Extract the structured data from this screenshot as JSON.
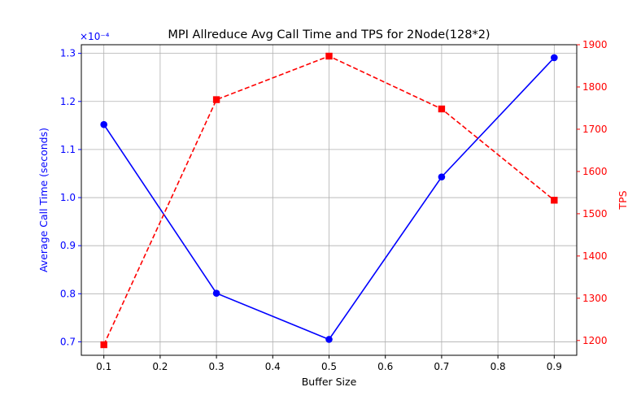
{
  "chart_data": {
    "type": "line",
    "title": "MPI Allreduce Avg Call Time and TPS for 2Node(128*2)",
    "xlabel": "Buffer Size",
    "x": [
      0.1,
      0.3,
      0.5,
      0.7,
      0.9
    ],
    "x_ticks": [
      "0.1",
      "0.2",
      "0.3",
      "0.4",
      "0.5",
      "0.6",
      "0.7",
      "0.8",
      "0.9"
    ],
    "xlim": [
      0.06,
      0.94
    ],
    "grid": true,
    "left_axis": {
      "label": "Average Call Time (seconds)",
      "offset_text": "×10⁻⁴",
      "color": "#0000ff",
      "ylim": [
        0.672,
        1.318
      ],
      "ticks": [
        "0.7",
        "0.8",
        "0.9",
        "1.0",
        "1.1",
        "1.2",
        "1.3"
      ]
    },
    "right_axis": {
      "label": "TPS",
      "color": "#ff0000",
      "ylim": [
        1165,
        1900
      ],
      "ticks": [
        "1200",
        "1300",
        "1400",
        "1500",
        "1600",
        "1700",
        "1800",
        "1900"
      ]
    },
    "series": [
      {
        "axis": "left",
        "color": "#0000ff",
        "marker": "circle",
        "line_style": "solid",
        "values": [
          1.152,
          0.801,
          0.705,
          1.043,
          1.291
        ]
      },
      {
        "axis": "right",
        "color": "#ff0000",
        "marker": "square",
        "line_style": "dashed",
        "values": [
          1190,
          1770,
          1873,
          1748,
          1532
        ]
      }
    ]
  }
}
